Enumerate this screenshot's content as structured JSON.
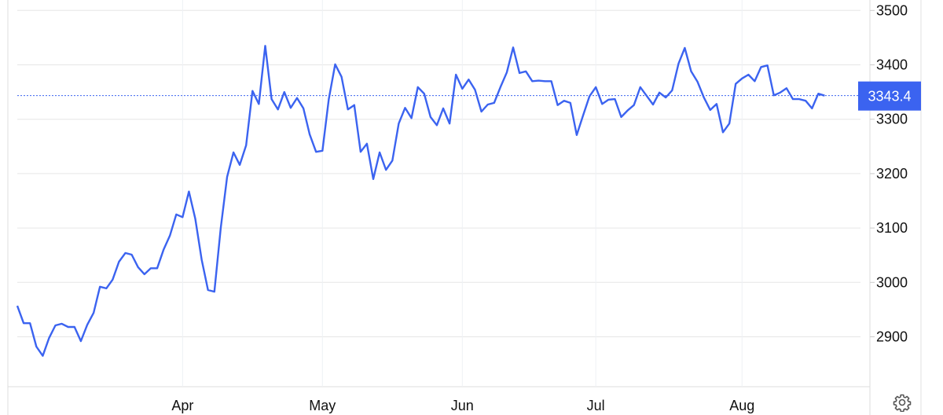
{
  "chart_data": {
    "type": "line",
    "title": "",
    "xlabel": "",
    "ylabel": "",
    "ylim": [
      2800,
      3500
    ],
    "y_ticks": [
      2900,
      3000,
      3100,
      3200,
      3300,
      3400,
      3500
    ],
    "x_ticks": [
      "Apr",
      "May",
      "Jun",
      "Jul",
      "Aug"
    ],
    "grid": true,
    "line_color": "#3b63f0",
    "last_price": 3343.4,
    "last_price_label": "3343.4",
    "values": [
      2957,
      2925,
      2925,
      2882,
      2865,
      2898,
      2921,
      2924,
      2918,
      2918,
      2892,
      2922,
      2944,
      2992,
      2989,
      3005,
      3038,
      3054,
      3051,
      3028,
      3015,
      3026,
      3026,
      3060,
      3086,
      3125,
      3120,
      3167,
      3117,
      3042,
      2986,
      2983,
      3100,
      3194,
      3239,
      3216,
      3252,
      3352,
      3328,
      3435,
      3337,
      3318,
      3350,
      3321,
      3339,
      3320,
      3272,
      3240,
      3242,
      3337,
      3401,
      3378,
      3318,
      3326,
      3240,
      3255,
      3190,
      3239,
      3207,
      3224,
      3292,
      3321,
      3302,
      3359,
      3347,
      3304,
      3289,
      3320,
      3292,
      3382,
      3356,
      3373,
      3354,
      3314,
      3327,
      3330,
      3359,
      3386,
      3432,
      3385,
      3388,
      3370,
      3371,
      3370,
      3370,
      3326,
      3334,
      3330,
      3271,
      3307,
      3342,
      3359,
      3328,
      3336,
      3337,
      3304,
      3316,
      3326,
      3359,
      3343,
      3327,
      3349,
      3340,
      3353,
      3402,
      3431,
      3388,
      3369,
      3340,
      3317,
      3328,
      3276,
      3292,
      3365,
      3375,
      3382,
      3370,
      3396,
      3399,
      3344,
      3349,
      3357,
      3337,
      3337,
      3334,
      3320,
      3347,
      3343.4
    ]
  },
  "settings_icon": "gear-icon"
}
